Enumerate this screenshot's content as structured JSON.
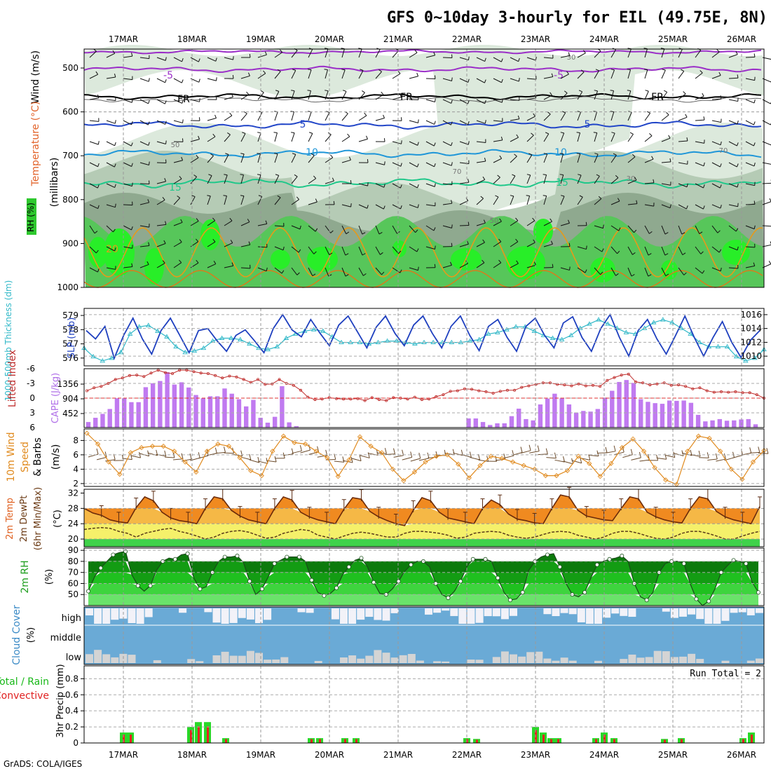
{
  "title": "GFS 0~10day 3-hourly for EIL (49.75E, 8N)",
  "footer": "GrADS: COLA/IGES",
  "dates": [
    "17MAR",
    "18MAR",
    "19MAR",
    "20MAR",
    "21MAR",
    "22MAR",
    "23MAR",
    "24MAR",
    "25MAR",
    "26MAR"
  ],
  "chart_data": [
    {
      "type": "contour",
      "name": "upper_air",
      "ylabel_wind": "Wind (m/s)",
      "ylabel_temp": "Temperature (°C)",
      "ylabel_rh": "RH (%)",
      "ylabel_units": "(millibars)",
      "yticks": [
        500,
        600,
        700,
        800,
        900,
        1000
      ],
      "isotherm_labels": [
        "-5",
        "FR",
        "5",
        "10",
        "15",
        "20"
      ],
      "rh_contour_labels": [
        "30",
        "50",
        "70"
      ]
    },
    {
      "type": "line",
      "name": "thickness_slp",
      "ylabel_left": "1000-500mb Thickness (dm)",
      "ylabel_right": "SLP (mb)",
      "yticks_left": [
        576,
        577,
        578,
        579
      ],
      "yticks_right": [
        1010,
        1012,
        1014,
        1016
      ],
      "slp": [
        1013.7,
        1012.5,
        1014.3,
        1009.7,
        1013.0,
        1015.5,
        1012.5,
        1010.3,
        1013.7,
        1015.5,
        1013.0,
        1010.5,
        1013.7,
        1014.0,
        1012.2,
        1010.7,
        1013.0,
        1013.8,
        1012.2,
        1010.5,
        1014.0,
        1016.0,
        1013.8,
        1012.8,
        1015.3,
        1013.3,
        1011.5,
        1014.5,
        1015.8,
        1013.5,
        1011.2,
        1014.2,
        1015.8,
        1013.3,
        1011.5,
        1014.5,
        1015.8,
        1013.3,
        1011.2,
        1014.3,
        1015.8,
        1013.0,
        1010.8,
        1014.3,
        1015.3,
        1012.7,
        1010.7,
        1014.3,
        1015.5,
        1013.0,
        1011.2,
        1014.8,
        1015.7,
        1012.7,
        1010.7,
        1014.0,
        1016.0,
        1012.7,
        1010.0,
        1013.7,
        1015.3,
        1012.5,
        1010.3,
        1013.0,
        1015.8,
        1012.7,
        1010.0,
        1012.7,
        1015.0,
        1012.0,
        1009.8,
        1012.3,
        1013.7
      ],
      "thickness": [
        576.6,
        576.0,
        575.7,
        575.9,
        576.3,
        577.6,
        578.1,
        578.2,
        577.8,
        577.4,
        576.7,
        576.3,
        576.4,
        576.6,
        577.1,
        577.3,
        577.3,
        577.2,
        576.9,
        576.6,
        576.5,
        576.7,
        577.3,
        577.6,
        577.8,
        577.9,
        577.8,
        577.4,
        577.0,
        577.0,
        577.0,
        576.9,
        577.0,
        577.1,
        577.1,
        577.0,
        576.9,
        577.0,
        577.0,
        577.0,
        577.0,
        577.0,
        577.1,
        577.2,
        577.6,
        577.7,
        577.9,
        578.1,
        578.1,
        577.8,
        577.5,
        577.3,
        577.2,
        577.5,
        578.0,
        578.3,
        578.6,
        578.3,
        578.0,
        577.7,
        577.6,
        578.0,
        578.4,
        578.6,
        578.4,
        578.0,
        577.6,
        577.0,
        576.7,
        576.7,
        576.7,
        576.0,
        575.7,
        575.9,
        576.5
      ],
      "series": [
        {
          "name": "SLP (mb)",
          "color": "#1e3fbf"
        },
        {
          "name": "Thickness (dm)",
          "color": "#30b8c8"
        }
      ]
    },
    {
      "type": "bar",
      "name": "cape_li",
      "ylabel_left": "CAPE (J/kg)",
      "ylabel_right": "Lifted Index",
      "yticks_left": [
        452,
        904,
        1356
      ],
      "yticks_right": [
        6,
        3,
        0,
        -3,
        -6
      ],
      "ylim_cape": [
        0,
        1808
      ],
      "cape": [
        170,
        300,
        420,
        570,
        900,
        900,
        780,
        780,
        1240,
        1360,
        1430,
        1700,
        1320,
        1390,
        1230,
        1000,
        900,
        960,
        960,
        1200,
        1040,
        870,
        650,
        850,
        300,
        150,
        330,
        1270,
        160,
        40,
        0,
        0,
        0,
        0,
        0,
        0,
        0,
        0,
        0,
        0,
        0,
        0,
        0,
        0,
        0,
        0,
        0,
        0,
        0,
        0,
        0,
        0,
        0,
        280,
        280,
        170,
        80,
        130,
        130,
        350,
        580,
        260,
        220,
        710,
        890,
        1040,
        900,
        710,
        460,
        510,
        490,
        570,
        920,
        1130,
        1400,
        1460,
        1370,
        870,
        790,
        750,
        730,
        830,
        820,
        830,
        760,
        390,
        190,
        220,
        260,
        210,
        220,
        250,
        260,
        100
      ],
      "lifted_index": [
        -1.5,
        -2.1,
        -2.4,
        -3.0,
        -3.8,
        -4.1,
        -4.6,
        -4.7,
        -4.4,
        -5.1,
        -5.7,
        -5.2,
        -5.0,
        -5.7,
        -5.7,
        -5.4,
        -5.1,
        -5.0,
        -4.6,
        -4.1,
        -4.5,
        -4.3,
        -3.8,
        -3.2,
        -3.8,
        -2.8,
        -2.9,
        -3.8,
        -3.0,
        -2.6,
        -1.6,
        -0.2,
        0.3,
        0.2,
        -0.1,
        0.1,
        0.2,
        0.2,
        0.1,
        0.5,
        -0.1,
        0.3,
        0.5,
        -0.1,
        0.0,
        0.2,
        -0.2,
        0.3,
        0.2,
        -0.3,
        -0.7,
        -1.4,
        -1.5,
        -1.9,
        -1.8,
        -1.5,
        -1.3,
        -1.0,
        -1.4,
        -1.6,
        -1.6,
        -2.2,
        -2.5,
        -2.8,
        -3.1,
        -3.1,
        -2.8,
        -2.7,
        -2.5,
        -2.9,
        -2.5,
        -2.6,
        -2.4,
        -3.6,
        -4.2,
        -4.7,
        -4.9,
        -3.3,
        -3.1,
        -2.7,
        -2.9,
        -3.1,
        -2.6,
        -2.7,
        -2.4,
        -1.9,
        -2.1,
        -1.5,
        -1.2,
        -1.3,
        -1.2,
        -1.3,
        -1.1,
        -1.1,
        -0.7,
        0.0
      ]
    },
    {
      "type": "line",
      "name": "wind10m",
      "ylabel": "10m Wind Speed & Barbs (m/s)",
      "yticks": [
        2,
        4,
        6,
        8
      ],
      "ylim": [
        1.6,
        9.6
      ],
      "speed": [
        9.0,
        7.5,
        5.0,
        3.3,
        6.3,
        7.0,
        7.2,
        7.2,
        6.5,
        5.0,
        3.6,
        6.5,
        7.5,
        7.2,
        5.6,
        3.8,
        3.1,
        6.5,
        8.6,
        7.7,
        7.5,
        6.5,
        5.6,
        3.0,
        5.3,
        8.5,
        7.2,
        6.3,
        4.0,
        2.4,
        3.6,
        5.0,
        5.8,
        6.0,
        4.7,
        2.8,
        4.5,
        5.8,
        5.5,
        5.0,
        4.5,
        4.0,
        3.1,
        3.1,
        3.8,
        5.8,
        4.8,
        3.0,
        4.8,
        7.0,
        8.2,
        6.5,
        4.2,
        2.5,
        1.9,
        6.5,
        8.6,
        8.3,
        6.5,
        4.0,
        2.6,
        5.0,
        6.6
      ],
      "series": [
        {
          "name": "Speed",
          "color": "#e08a1e"
        }
      ]
    },
    {
      "type": "area",
      "name": "temp2m",
      "ylabel": "2m Temp / 2m DewPt (6hr Min/Max) (°C)",
      "yticks": [
        20,
        24,
        28,
        32
      ],
      "ylim": [
        18,
        33
      ],
      "temp": [
        28.0,
        26.8,
        26.2,
        25.0,
        24.5,
        24.2,
        28.2,
        31.0,
        30.0,
        27.0,
        25.5,
        24.8,
        24.5,
        24.0,
        28.0,
        31.0,
        30.5,
        27.5,
        26.0,
        25.0,
        24.5,
        24.0,
        28.0,
        31.0,
        30.2,
        27.0,
        25.8,
        25.0,
        24.5,
        24.0,
        27.8,
        30.8,
        30.4,
        27.2,
        25.8,
        24.8,
        24.0,
        23.5,
        27.5,
        30.8,
        30.0,
        27.0,
        25.5,
        25.0,
        24.5,
        24.0,
        28.0,
        30.2,
        29.0,
        26.5,
        25.2,
        24.8,
        24.2,
        24.0,
        28.0,
        31.5,
        31.0,
        27.5,
        26.0,
        25.5,
        25.0,
        24.8,
        28.0,
        31.0,
        30.5,
        27.0,
        25.8,
        25.0,
        24.5,
        24.2,
        28.0,
        31.0,
        30.5,
        27.2,
        25.8,
        25.0,
        24.5,
        24.0,
        28.5
      ],
      "dewpt": [
        22.5,
        22.8,
        23.0,
        22.8,
        22.0,
        21.5,
        20.5,
        21.5,
        22.0,
        22.5,
        22.8,
        22.0,
        21.5,
        20.8,
        20.0,
        20.5,
        21.5,
        22.0,
        22.2,
        21.8,
        21.0,
        20.2,
        20.5,
        21.5,
        22.0,
        22.5,
        22.2,
        21.0,
        20.5,
        20.0,
        20.8,
        21.5,
        21.8,
        21.5,
        21.0,
        20.5,
        20.5,
        21.5,
        22.0,
        22.0,
        21.8,
        21.5,
        21.0,
        20.2,
        20.5,
        21.5,
        21.8,
        22.0,
        21.8,
        21.0,
        20.5,
        20.2,
        20.5,
        21.2,
        21.8,
        22.0,
        21.8,
        21.0,
        20.5,
        20.0,
        20.5,
        21.5,
        22.0,
        22.0,
        21.5,
        20.8,
        20.2,
        20.0,
        20.5,
        21.5,
        22.0,
        22.0,
        21.5,
        20.8,
        20.0,
        20.0,
        20.8,
        21.5,
        22.0
      ],
      "series": [
        {
          "name": "2m Temp",
          "color": "#6b2a0a"
        },
        {
          "name": "2m DewPt",
          "color": "#5a3c1a"
        }
      ]
    },
    {
      "type": "area",
      "name": "rh2m",
      "ylabel": "2m RH (%)",
      "yticks": [
        50,
        60,
        70,
        80,
        90
      ],
      "ylim": [
        40,
        92
      ],
      "rh": [
        53,
        66,
        74,
        80,
        86,
        88,
        89,
        68,
        58,
        53,
        58,
        72,
        80,
        83,
        82,
        86,
        87,
        65,
        55,
        57,
        70,
        80,
        84,
        84,
        85,
        79,
        62,
        50,
        55,
        66,
        78,
        81,
        84,
        84,
        84,
        80,
        63,
        52,
        49,
        51,
        56,
        68,
        75,
        81,
        83,
        75,
        61,
        51,
        50,
        55,
        62,
        71,
        77,
        80,
        80,
        75,
        60,
        50,
        47,
        53,
        62,
        75,
        82,
        82,
        82,
        80,
        65,
        52,
        45,
        46,
        52,
        72,
        80,
        84,
        86,
        87,
        75,
        60,
        50,
        48,
        52,
        65,
        77,
        80,
        82,
        83,
        85,
        80,
        60,
        48,
        45,
        52,
        70,
        78,
        80,
        80,
        78,
        60,
        46,
        40,
        44,
        55,
        70,
        76,
        81,
        80,
        78,
        61,
        52
      ]
    }
  ],
  "cloud": {
    "ylabel": "Cloud Cover (%)",
    "levels": [
      "high",
      "middle",
      "low"
    ]
  },
  "precip": {
    "ylabel_left": "Total / Rain",
    "ylabel_left2": "Convective",
    "ylabel": "3hr Precip (mm)",
    "yticks": [
      0,
      0.2,
      0.4,
      0.6,
      0.8
    ],
    "ylim": [
      0,
      0.96
    ],
    "run_total": "Run Total = 2",
    "events": [
      {
        "x": 176,
        "total": 0.13
      },
      {
        "x": 186,
        "total": 0.13
      },
      {
        "x": 272,
        "total": 0.2
      },
      {
        "x": 283,
        "total": 0.26
      },
      {
        "x": 296,
        "total": 0.26
      },
      {
        "x": 322,
        "total": 0.06
      },
      {
        "x": 444,
        "total": 0.06
      },
      {
        "x": 456,
        "total": 0.06
      },
      {
        "x": 492,
        "total": 0.06
      },
      {
        "x": 508,
        "total": 0.06
      },
      {
        "x": 666,
        "total": 0.06
      },
      {
        "x": 680,
        "total": 0.05
      },
      {
        "x": 764,
        "total": 0.2
      },
      {
        "x": 775,
        "total": 0.13
      },
      {
        "x": 786,
        "total": 0.06
      },
      {
        "x": 796,
        "total": 0.06
      },
      {
        "x": 850,
        "total": 0.06
      },
      {
        "x": 862,
        "total": 0.13
      },
      {
        "x": 876,
        "total": 0.06
      },
      {
        "x": 948,
        "total": 0.05
      },
      {
        "x": 972,
        "total": 0.06
      },
      {
        "x": 1060,
        "total": 0.06
      },
      {
        "x": 1072,
        "total": 0.13
      }
    ]
  },
  "colors": {
    "isotherm_cold": "#9b2fc8",
    "isotherm_blue": "#2246c8",
    "isotherm_cyan": "#1f96d8",
    "isotherm_teal": "#1fc88a",
    "isotherm_orange": "#e69a1a",
    "rh_light": "#dce9dc",
    "rh_mid": "#b5cbb5",
    "rh_dark": "#8fa98f",
    "rh_green": "#57c65a",
    "rh_bright": "#28ee28",
    "cape": "#c07af0",
    "lifted_index": "#c0302f",
    "temp_hot": "#f08a20",
    "temp_warm": "#f5b846",
    "temp_yellow": "#f5f06a",
    "temp_green": "#3fd24a",
    "cloud_blue": "#6aaad6",
    "precip_green": "#28d828",
    "precip_red": "#e82020"
  }
}
